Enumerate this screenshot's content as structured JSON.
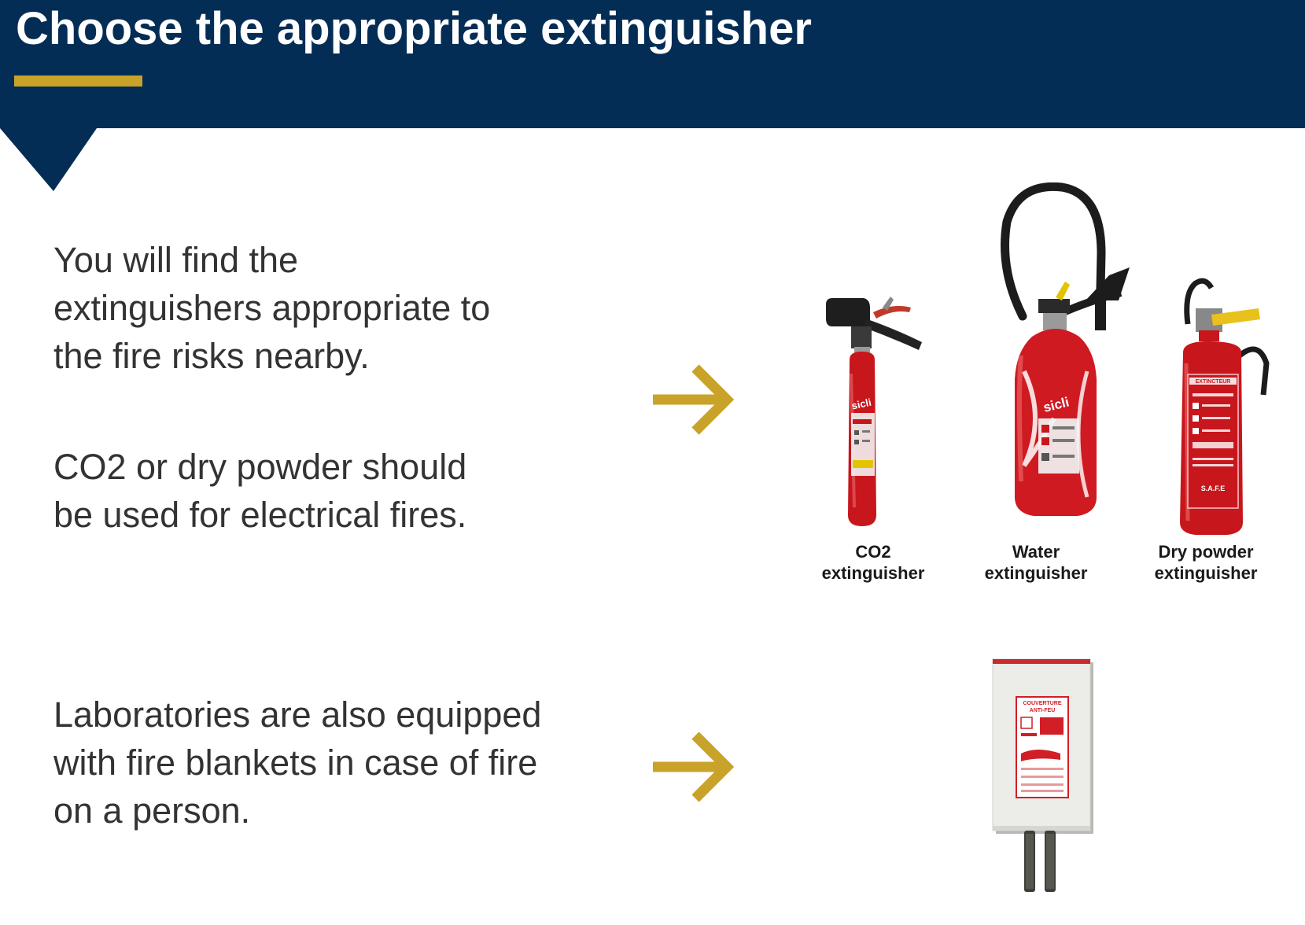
{
  "header": {
    "title": "Choose the appropriate extinguisher",
    "background_color": "#032d55",
    "accent_color": "#c9a22a"
  },
  "paragraphs": {
    "p1": [
      "You will find the",
      "extinguishers appropriate to",
      "the fire risks nearby."
    ],
    "p2": [
      "CO2 or dry powder should",
      "be used for electrical fires."
    ],
    "p3": [
      "Laboratories are also equipped",
      "with fire blankets in case of fire",
      "on a person."
    ]
  },
  "arrow_icon": "arrow-right-icon",
  "extinguishers": [
    {
      "caption_line1": "CO2",
      "caption_line2": "extinguisher",
      "brand": "sicli"
    },
    {
      "caption_line1": "Water",
      "caption_line2": "extinguisher",
      "brand": "sicli"
    },
    {
      "caption_line1": "Dry powder",
      "caption_line2": "extinguisher",
      "label_top": "EXTINCTEUR",
      "label_bottom": "S.A.F.E"
    }
  ],
  "fire_blanket": {
    "label_line1": "COUVERTURE",
    "label_line2": "ANTI-FEU"
  }
}
